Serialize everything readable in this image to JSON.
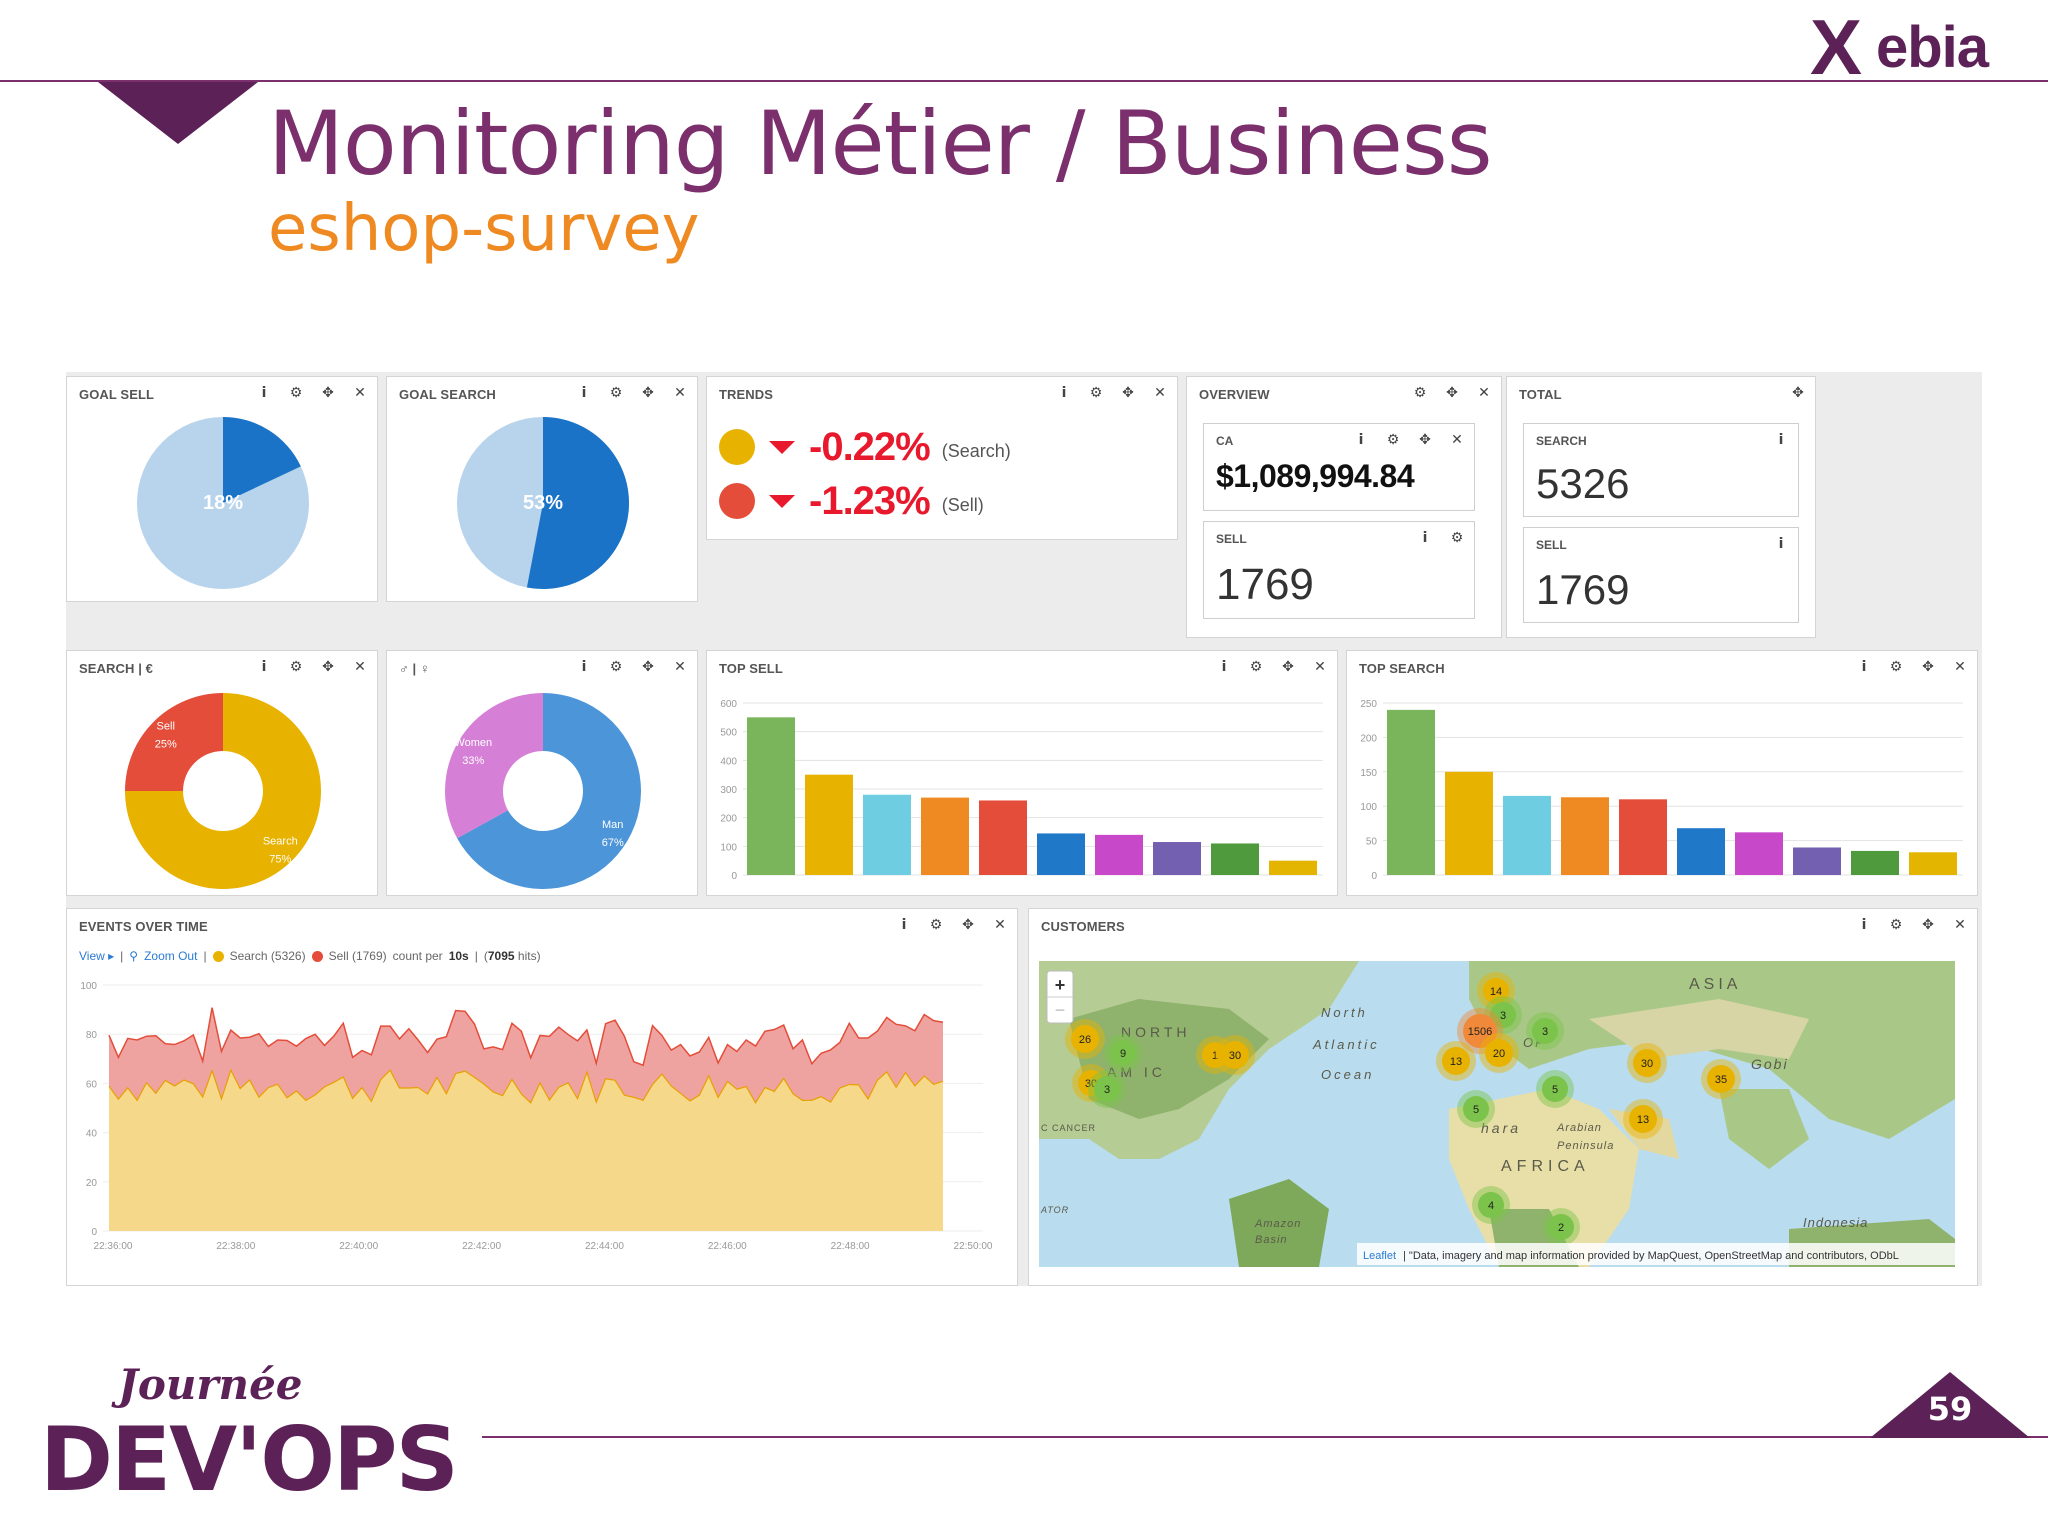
{
  "slide": {
    "title": "Monitoring Métier / Business",
    "subtitle": "eshop-survey",
    "page_number": "59",
    "logo_top": "Xebia",
    "logo_bottom": "Journée DEV'OPS"
  },
  "icons": {
    "info": "info-icon",
    "gear": "gear-icon",
    "move": "move-icon",
    "close": "close-icon"
  },
  "colors": {
    "brand_purple": "#7b2f6c",
    "brand_orange": "#ef8a22",
    "search_yellow": "#e8b200",
    "sell_red": "#e44d3a",
    "trend_red": "#e8192c",
    "light_blue": "#b8d4ec",
    "dark_blue": "#1a73c6"
  },
  "dashboard": {
    "goal_sell": {
      "title": "GOAL SELL",
      "label": "18%",
      "value": 18
    },
    "goal_search": {
      "title": "GOAL SEARCH",
      "label": "53%",
      "value": 53
    },
    "trends": {
      "title": "TRENDS",
      "rows": [
        {
          "value": "-0.22%",
          "label": "(Search)",
          "color": "#e8b200"
        },
        {
          "value": "-1.23%",
          "label": "(Sell)",
          "color": "#e44d3a"
        }
      ]
    },
    "overview": {
      "title": "OVERVIEW",
      "ca_label": "CA",
      "ca_value": "$1,089,994.84",
      "sell_label": "SELL",
      "sell_value": "1769"
    },
    "total": {
      "title": "TOTAL",
      "search_label": "SEARCH",
      "search_value": "5326",
      "sell_label": "SELL",
      "sell_value": "1769"
    },
    "search_eur": {
      "title": "SEARCH | €",
      "slices": [
        {
          "name": "Sell",
          "pct": "25%",
          "value": 25,
          "color": "#e44d3a"
        },
        {
          "name": "Search",
          "pct": "75%",
          "value": 75,
          "color": "#e8b200"
        }
      ]
    },
    "gender": {
      "title": "♂ | ♀",
      "slices": [
        {
          "name": "Women",
          "pct": "33%",
          "value": 33,
          "color": "#d580d6"
        },
        {
          "name": "Man",
          "pct": "67%",
          "value": 67,
          "color": "#4d95d9"
        }
      ]
    },
    "top_sell": {
      "title": "TOP SELL",
      "yticks": [
        "0",
        "100",
        "200",
        "300",
        "400",
        "500",
        "600"
      ],
      "ymax": 600,
      "values": [
        550,
        350,
        280,
        270,
        260,
        145,
        140,
        115,
        110,
        50
      ],
      "colors": [
        "#7ab55c",
        "#e8b200",
        "#6fcde1",
        "#ef8a22",
        "#e44d3a",
        "#1f78c8",
        "#c748c8",
        "#7460b0",
        "#4e9a3c",
        "#e3b400"
      ]
    },
    "top_search": {
      "title": "TOP SEARCH",
      "yticks": [
        "0",
        "50",
        "100",
        "150",
        "200",
        "250"
      ],
      "ymax": 250,
      "values": [
        240,
        150,
        115,
        113,
        110,
        68,
        62,
        40,
        35,
        33
      ],
      "colors": [
        "#7ab55c",
        "#e8b200",
        "#6fcde1",
        "#ef8a22",
        "#e44d3a",
        "#1f78c8",
        "#c748c8",
        "#7460b0",
        "#4e9a3c",
        "#e3b400"
      ]
    },
    "events": {
      "title": "EVENTS OVER TIME",
      "view": "View ▸",
      "zoom_out": "Zoom Out",
      "search_legend": "Search (5326)",
      "sell_legend": "Sell (1769)",
      "count_text": "count per",
      "interval": "10s",
      "hits_prefix": "(",
      "hits": "7095",
      "hits_suffix": "hits)",
      "yticks": [
        "0",
        "20",
        "40",
        "60",
        "80",
        "100"
      ],
      "xticks": [
        "22:36:00",
        "22:38:00",
        "22:40:00",
        "22:42:00",
        "22:44:00",
        "22:46:00",
        "22:48:00",
        "22:50:00"
      ]
    },
    "customers": {
      "title": "CUSTOMERS",
      "zoom_in": "+",
      "zoom_out": "−",
      "attribution_link": "Leaflet",
      "attribution_text": "| \"Data, imagery and map information provided by MapQuest, OpenStreetMap and contributors, ODbL",
      "labels": [
        {
          "text": "ASIA"
        },
        {
          "text": "North"
        },
        {
          "text": "Atlantic"
        },
        {
          "text": "Ocean"
        },
        {
          "text": "NORTH"
        },
        {
          "text": "AM  IC"
        },
        {
          "text": "Gobi"
        },
        {
          "text": "hara"
        },
        {
          "text": "Arabian"
        },
        {
          "text": "Peninsula"
        },
        {
          "text": "AFRICA"
        },
        {
          "text": "C CANCER"
        },
        {
          "text": "Amazon"
        },
        {
          "text": "Basin"
        },
        {
          "text": "Indonesia"
        },
        {
          "text": "ATOR"
        },
        {
          "text": "OP"
        }
      ],
      "clusters": [
        {
          "n": "14",
          "c": "#e8b200"
        },
        {
          "n": "3",
          "c": "#7bc34a"
        },
        {
          "n": "1506",
          "c": "#f08a3a"
        },
        {
          "n": "3",
          "c": "#7bc34a"
        },
        {
          "n": "20",
          "c": "#e8b200"
        },
        {
          "n": "13",
          "c": "#e8b200"
        },
        {
          "n": "5",
          "c": "#7bc34a"
        },
        {
          "n": "5",
          "c": "#7bc34a"
        },
        {
          "n": "26",
          "c": "#e8b200"
        },
        {
          "n": "9",
          "c": "#7bc34a"
        },
        {
          "n": "1",
          "c": "#e8b200"
        },
        {
          "n": "30",
          "c": "#e8b200"
        },
        {
          "n": "30",
          "c": "#e8b200"
        },
        {
          "n": "3",
          "c": "#7bc34a"
        },
        {
          "n": "30",
          "c": "#e8b200"
        },
        {
          "n": "35",
          "c": "#e8b200"
        },
        {
          "n": "13",
          "c": "#e8b200"
        },
        {
          "n": "4",
          "c": "#7bc34a"
        },
        {
          "n": "2",
          "c": "#7bc34a"
        }
      ]
    }
  }
}
